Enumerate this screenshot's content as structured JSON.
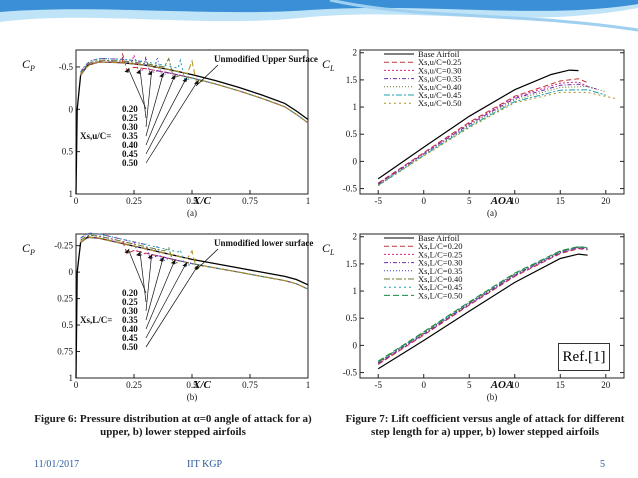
{
  "colors": {
    "banner_main": "#3a8fd6",
    "banner_light": "#bfe3f7",
    "caption_text": "#1a1a1a",
    "footer_text": "#2a5a9a"
  },
  "figure6": {
    "caption": "Figure 6: Pressure distribution at α=0 angle of attack for a) upper, b) lower stepped airfoils"
  },
  "figure7": {
    "caption": "Figure 7: Lift coefficient versus angle of attack for different step length for a) upper, b) lower stepped airfoils"
  },
  "footer": {
    "date": "11/01/2017",
    "institute": "IIT KGP",
    "page": "5"
  },
  "ref_label": "Ref.[1]",
  "chart_data": [
    {
      "id": "cp_upper",
      "type": "line",
      "panel": "(a)",
      "ylabel": "C_P",
      "xlabel": "X/C",
      "xlim": [
        0,
        1
      ],
      "ylim": [
        1,
        -0.7
      ],
      "x_ticks": [
        0,
        0.25,
        0.5,
        0.75,
        1
      ],
      "y_ticks": [
        -0.5,
        0,
        0.5,
        1
      ],
      "tick_labels_x": [
        "0",
        "0.25",
        "0.5",
        "0.75",
        "1"
      ],
      "tick_labels_y": [
        "-0.5",
        "0",
        "0.5",
        "1"
      ],
      "annotation": "Unmodified Upper Surface",
      "legend_title": "Xs,u/C=",
      "legend_values": [
        "0.20",
        "0.25",
        "0.30",
        "0.35",
        "0.40",
        "0.45",
        "0.50"
      ],
      "base": {
        "x": [
          0,
          0.005,
          0.02,
          0.05,
          0.1,
          0.2,
          0.3,
          0.4,
          0.5,
          0.6,
          0.7,
          0.8,
          0.9,
          0.95,
          1.0
        ],
        "y": [
          1.0,
          0.0,
          -0.4,
          -0.52,
          -0.56,
          -0.55,
          -0.52,
          -0.47,
          -0.41,
          -0.34,
          -0.26,
          -0.17,
          -0.07,
          0.02,
          0.12
        ]
      },
      "steps": [
        0.2,
        0.25,
        0.3,
        0.35,
        0.4,
        0.45,
        0.5
      ],
      "step_peaks": [
        -0.66,
        -0.64,
        -0.62,
        -0.61,
        -0.6,
        -0.58,
        -0.57
      ]
    },
    {
      "id": "cl_upper",
      "type": "line",
      "panel": "(a)",
      "ylabel": "C_L",
      "xlabel": "AOA",
      "xlim": [
        -7,
        22
      ],
      "ylim": [
        -0.6,
        2.05
      ],
      "x_ticks": [
        -5,
        0,
        5,
        10,
        15,
        20
      ],
      "y_ticks": [
        -0.5,
        0,
        0.5,
        1,
        1.5,
        2
      ],
      "tick_labels_x": [
        "-5",
        "0",
        "5",
        "10",
        "15",
        "20"
      ],
      "tick_labels_y": [
        "-0.5",
        "0",
        "0.5",
        "1",
        "1.5",
        "2"
      ],
      "series": [
        {
          "name": "Base Airfoil",
          "color": "#000000",
          "dash": "",
          "x": [
            -5,
            0,
            5,
            10,
            14,
            16,
            17
          ],
          "y": [
            -0.32,
            0.26,
            0.83,
            1.32,
            1.6,
            1.68,
            1.67
          ]
        },
        {
          "name": "Xs,u/C=0.25",
          "color": "#c03030",
          "dash": "5,3",
          "x": [
            -5,
            0,
            5,
            10,
            15,
            17,
            18
          ],
          "y": [
            -0.4,
            0.16,
            0.72,
            1.2,
            1.48,
            1.52,
            1.45
          ]
        },
        {
          "name": "Xs,u/C=0.30",
          "color": "#cc2c8c",
          "dash": "2,2",
          "x": [
            -5,
            0,
            5,
            10,
            15,
            17,
            18
          ],
          "y": [
            -0.41,
            0.15,
            0.7,
            1.18,
            1.44,
            1.46,
            1.38
          ]
        },
        {
          "name": "Xs,u/C=0.35",
          "color": "#6a2aa8",
          "dash": "4,2,1,2",
          "x": [
            -5,
            0,
            5,
            10,
            15,
            17,
            19
          ],
          "y": [
            -0.42,
            0.14,
            0.68,
            1.16,
            1.4,
            1.42,
            1.33
          ]
        },
        {
          "name": "Xs,u/C=0.40",
          "color": "#6a7a30",
          "dash": "1,2",
          "x": [
            -5,
            0,
            5,
            10,
            15,
            18,
            20
          ],
          "y": [
            -0.43,
            0.12,
            0.66,
            1.13,
            1.36,
            1.38,
            1.28
          ]
        },
        {
          "name": "Xs,u/C=0.45",
          "color": "#1aa0b0",
          "dash": "6,2,2,2",
          "x": [
            -5,
            0,
            5,
            10,
            15,
            18,
            20
          ],
          "y": [
            -0.44,
            0.11,
            0.64,
            1.1,
            1.31,
            1.32,
            1.22
          ]
        },
        {
          "name": "Xs,u/C=0.50",
          "color": "#b09020",
          "dash": "2,3",
          "x": [
            -5,
            0,
            5,
            10,
            15,
            18,
            21
          ],
          "y": [
            -0.45,
            0.1,
            0.62,
            1.08,
            1.27,
            1.27,
            1.16
          ]
        }
      ]
    },
    {
      "id": "cp_lower",
      "type": "line",
      "panel": "(b)",
      "ylabel": "C_P",
      "xlabel": "X/C",
      "xlim": [
        0,
        1
      ],
      "ylim": [
        1,
        -0.36
      ],
      "x_ticks": [
        0,
        0.25,
        0.5,
        0.75,
        1
      ],
      "y_ticks": [
        -0.25,
        0,
        0.25,
        0.5,
        0.75,
        1
      ],
      "tick_labels_x": [
        "0",
        "0.25",
        "0.5",
        "0.75",
        "1"
      ],
      "tick_labels_y": [
        "-0.25",
        "0",
        "0.25",
        "0.5",
        "0.75",
        "1"
      ],
      "annotation": "Unmodified lower surface",
      "legend_title": "Xs,L/C=",
      "legend_values": [
        "0.20",
        "0.25",
        "0.30",
        "0.35",
        "0.40",
        "0.45",
        "0.50"
      ],
      "base": {
        "x": [
          0,
          0.005,
          0.02,
          0.05,
          0.1,
          0.2,
          0.3,
          0.4,
          0.5,
          0.6,
          0.7,
          0.8,
          0.9,
          0.95,
          1.0
        ],
        "y": [
          1.0,
          0.0,
          -0.28,
          -0.33,
          -0.32,
          -0.27,
          -0.22,
          -0.17,
          -0.12,
          -0.08,
          -0.04,
          0.0,
          0.04,
          0.07,
          0.12
        ]
      },
      "steps": [
        0.2,
        0.25,
        0.3,
        0.35,
        0.4,
        0.45,
        0.5
      ],
      "step_peaks": [
        -0.3,
        -0.28,
        -0.27,
        -0.25,
        -0.23,
        -0.21,
        -0.2
      ]
    },
    {
      "id": "cl_lower",
      "type": "line",
      "panel": "(b)",
      "ylabel": "C_L",
      "xlabel": "AOA",
      "xlim": [
        -7,
        22
      ],
      "ylim": [
        -0.6,
        2.05
      ],
      "x_ticks": [
        -5,
        0,
        5,
        10,
        15,
        20
      ],
      "y_ticks": [
        -0.5,
        0,
        0.5,
        1,
        1.5,
        2
      ],
      "tick_labels_x": [
        "-5",
        "0",
        "5",
        "10",
        "15",
        "20"
      ],
      "tick_labels_y": [
        "-0.5",
        "0",
        "0.5",
        "1",
        "1.5",
        "2"
      ],
      "series": [
        {
          "name": "Base Airfoil",
          "color": "#000000",
          "dash": "",
          "x": [
            -5,
            0,
            5,
            10,
            15,
            17,
            18
          ],
          "y": [
            -0.43,
            0.09,
            0.63,
            1.16,
            1.6,
            1.68,
            1.66
          ]
        },
        {
          "name": "Xs,L/C=0.20",
          "color": "#c03030",
          "dash": "5,3",
          "x": [
            -5,
            0,
            5,
            10,
            15,
            17,
            18
          ],
          "y": [
            -0.35,
            0.19,
            0.74,
            1.27,
            1.69,
            1.78,
            1.76
          ]
        },
        {
          "name": "Xs,L/C=0.25",
          "color": "#cc2c8c",
          "dash": "2,2",
          "x": [
            -5,
            0,
            5,
            10,
            15,
            17,
            18
          ],
          "y": [
            -0.34,
            0.2,
            0.75,
            1.28,
            1.7,
            1.79,
            1.77
          ]
        },
        {
          "name": "Xs,L/C=0.30",
          "color": "#6a2aa8",
          "dash": "4,2,1,2",
          "x": [
            -5,
            0,
            5,
            10,
            15,
            17,
            18
          ],
          "y": [
            -0.33,
            0.21,
            0.76,
            1.29,
            1.71,
            1.8,
            1.78
          ]
        },
        {
          "name": "Xs,L/C=0.35",
          "color": "#3a3ad0",
          "dash": "1,2",
          "x": [
            -5,
            0,
            5,
            10,
            15,
            17,
            18
          ],
          "y": [
            -0.32,
            0.22,
            0.77,
            1.3,
            1.72,
            1.8,
            1.78
          ]
        },
        {
          "name": "Xs,L/C=0.40",
          "color": "#6a7a30",
          "dash": "6,2,2,2",
          "x": [
            -5,
            0,
            5,
            10,
            15,
            17,
            18
          ],
          "y": [
            -0.31,
            0.23,
            0.78,
            1.31,
            1.73,
            1.81,
            1.79
          ]
        },
        {
          "name": "Xs,L/C=0.45",
          "color": "#1aa0b0",
          "dash": "2,3",
          "x": [
            -5,
            0,
            5,
            10,
            15,
            17,
            18
          ],
          "y": [
            -0.3,
            0.24,
            0.79,
            1.32,
            1.73,
            1.81,
            1.79
          ]
        },
        {
          "name": "Xs,L/C=0.50",
          "color": "#1a8a40",
          "dash": "6,3",
          "x": [
            -5,
            0,
            5,
            10,
            15,
            17,
            18
          ],
          "y": [
            -0.29,
            0.25,
            0.8,
            1.33,
            1.74,
            1.82,
            1.8
          ]
        }
      ]
    }
  ]
}
